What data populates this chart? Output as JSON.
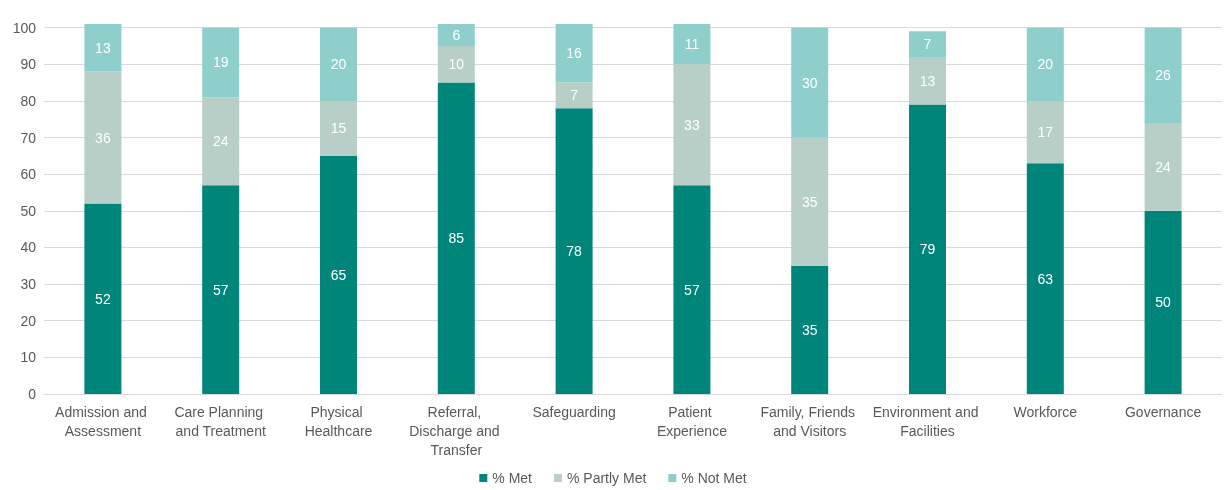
{
  "chart_data": {
    "type": "bar",
    "stacked": true,
    "data_labels": true,
    "grid": "y",
    "legend": "bottom",
    "categories": [
      "Admission and Assessment",
      "Care Planning and Treatment",
      "Physical Healthcare",
      "Referral, Discharge and Transfer",
      "Safeguarding",
      "Patient Experience",
      "Family, Friends and Visitors",
      "Environment and Facilities",
      "Workforce",
      "Governance"
    ],
    "ylim": [
      0,
      101
    ],
    "yticks": [
      0,
      10,
      20,
      30,
      40,
      50,
      60,
      70,
      80,
      90,
      100
    ],
    "series": [
      {
        "name": "% Met",
        "color": "#00857a",
        "values": [
          52,
          57,
          65,
          85,
          78,
          57,
          35,
          79,
          63,
          50
        ]
      },
      {
        "name": "% Partly Met",
        "color": "#b8cfc8",
        "values": [
          36,
          24,
          15,
          10,
          7,
          33,
          35,
          13,
          17,
          24
        ]
      },
      {
        "name": "% Not Met",
        "color": "#8ecfcc",
        "values": [
          13,
          19,
          20,
          6,
          16,
          11,
          30,
          7,
          20,
          26
        ]
      }
    ]
  }
}
